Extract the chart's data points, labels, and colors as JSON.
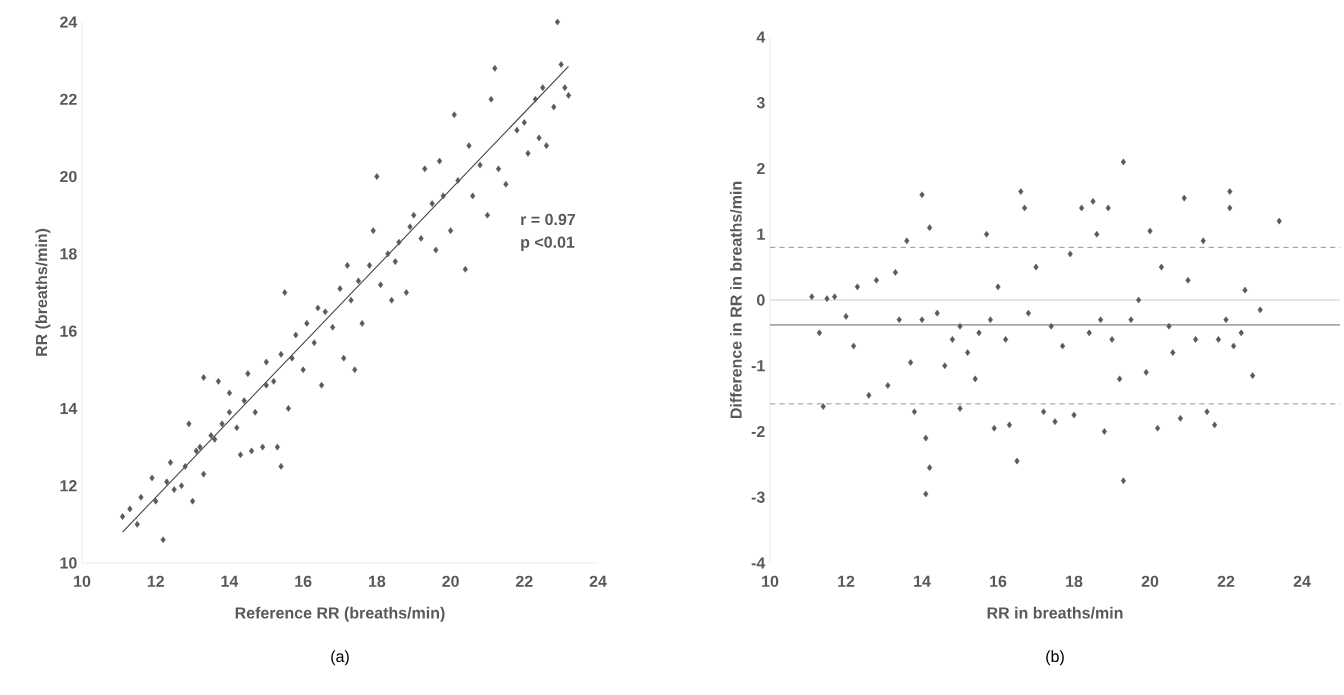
{
  "chart_data": [
    {
      "type": "scatter",
      "title": "(a)",
      "xlabel": "Reference RR (breaths/min)",
      "ylabel": "RR (breaths/min)",
      "xlim": [
        10,
        24
      ],
      "ylim": [
        10,
        24
      ],
      "xticks": [
        10,
        12,
        14,
        16,
        18,
        20,
        22,
        24
      ],
      "yticks": [
        10,
        12,
        14,
        16,
        18,
        20,
        22,
        24
      ],
      "annotations": [
        "r = 0.97",
        "p <0.01"
      ],
      "series": [
        {
          "marker": "diamond",
          "color": "#595959",
          "x": [
            11.1,
            11.3,
            11.5,
            11.6,
            11.9,
            12.0,
            12.2,
            12.3,
            12.4,
            12.5,
            12.7,
            12.8,
            12.9,
            13.0,
            13.1,
            13.2,
            13.3,
            13.3,
            13.5,
            13.6,
            13.7,
            13.8,
            14.0,
            14.0,
            14.2,
            14.3,
            14.4,
            14.5,
            14.6,
            14.7,
            14.9,
            15.0,
            15.0,
            15.2,
            15.3,
            15.4,
            15.4,
            15.5,
            15.6,
            15.7,
            15.8,
            16.0,
            16.1,
            16.3,
            16.4,
            16.5,
            16.6,
            16.8,
            17.0,
            17.1,
            17.2,
            17.3,
            17.4,
            17.5,
            17.6,
            17.8,
            17.9,
            18.0,
            18.1,
            18.3,
            18.4,
            18.5,
            18.6,
            18.8,
            18.9,
            19.0,
            19.2,
            19.3,
            19.5,
            19.6,
            19.7,
            19.8,
            20.0,
            20.1,
            20.2,
            20.4,
            20.5,
            20.6,
            20.8,
            21.0,
            21.1,
            21.2,
            21.3,
            21.5,
            21.8,
            22.0,
            22.1,
            22.3,
            22.4,
            22.5,
            22.6,
            22.8,
            22.9,
            23.0,
            23.1,
            23.2
          ],
          "values": [
            11.2,
            11.4,
            11.0,
            11.7,
            12.2,
            11.6,
            10.6,
            12.1,
            12.6,
            11.9,
            12.0,
            12.5,
            13.6,
            11.6,
            12.9,
            13.0,
            14.8,
            12.3,
            13.3,
            13.2,
            14.7,
            13.6,
            13.9,
            14.4,
            13.5,
            12.8,
            14.2,
            14.9,
            12.9,
            13.9,
            13.0,
            14.6,
            15.2,
            14.7,
            13.0,
            12.5,
            15.4,
            17.0,
            14.0,
            15.3,
            15.9,
            15.0,
            16.2,
            15.7,
            16.6,
            14.6,
            16.5,
            16.1,
            17.1,
            15.3,
            17.7,
            16.8,
            15.0,
            17.3,
            16.2,
            17.7,
            18.6,
            20.0,
            17.2,
            18.0,
            16.8,
            17.8,
            18.3,
            17.0,
            18.7,
            19.0,
            18.4,
            20.2,
            19.3,
            18.1,
            20.4,
            19.5,
            18.6,
            21.6,
            19.9,
            17.6,
            20.8,
            19.5,
            20.3,
            19.0,
            22.0,
            22.8,
            20.2,
            19.8,
            21.2,
            21.4,
            20.6,
            22.0,
            21.0,
            22.3,
            20.8,
            21.8,
            24.0,
            22.9,
            22.3,
            22.1
          ]
        },
        {
          "type": "line",
          "color": "#404040",
          "x": [
            11.1,
            23.2
          ],
          "values": [
            10.8,
            22.85
          ]
        }
      ]
    },
    {
      "type": "scatter",
      "title": "(b)",
      "xlabel": "RR in breaths/min",
      "ylabel": "Difference in RR in breaths/min",
      "xlim": [
        10,
        25
      ],
      "ylim": [
        -4,
        4
      ],
      "xticks": [
        10,
        12,
        14,
        16,
        18,
        20,
        22,
        24
      ],
      "yticks": [
        -4,
        -3,
        -2,
        -1,
        0,
        1,
        2,
        3,
        4
      ],
      "marker": "diamond",
      "ref_lines": [
        {
          "axis": "y",
          "value": 0,
          "color": "#bfbfbf",
          "line_style": "solid"
        },
        {
          "axis": "y",
          "value": -0.38,
          "color": "#a6a6a6",
          "line_style": "solid"
        },
        {
          "axis": "y",
          "value": 0.8,
          "color": "#7f7f7f",
          "line_style": "dashed"
        },
        {
          "axis": "y",
          "value": -1.58,
          "color": "#7f7f7f",
          "line_style": "dashed"
        }
      ],
      "series": [
        {
          "color": "#595959",
          "x": [
            11.1,
            11.3,
            11.4,
            11.5,
            11.7,
            12.0,
            12.2,
            12.3,
            12.6,
            12.8,
            13.1,
            13.3,
            13.4,
            13.6,
            13.7,
            13.8,
            14.0,
            14.0,
            14.1,
            14.2,
            14.1,
            14.2,
            14.4,
            14.6,
            14.8,
            15.0,
            15.0,
            15.2,
            15.4,
            15.5,
            15.7,
            15.8,
            15.9,
            16.0,
            16.2,
            16.3,
            16.5,
            16.6,
            16.7,
            16.8,
            17.0,
            17.2,
            17.4,
            17.5,
            17.7,
            17.9,
            18.0,
            18.2,
            18.4,
            18.5,
            18.6,
            18.7,
            18.8,
            18.9,
            19.0,
            19.2,
            19.3,
            19.3,
            19.5,
            19.7,
            19.9,
            20.0,
            20.2,
            20.3,
            20.5,
            20.6,
            20.8,
            20.9,
            21.0,
            21.2,
            21.4,
            21.5,
            21.7,
            21.8,
            22.0,
            22.1,
            22.1,
            22.2,
            22.4,
            22.5,
            22.7,
            22.9,
            23.4
          ],
          "values": [
            0.05,
            -0.5,
            -1.62,
            0.02,
            0.05,
            -0.25,
            -0.7,
            0.2,
            -1.45,
            0.3,
            -1.3,
            0.42,
            -0.3,
            0.9,
            -0.95,
            -1.7,
            1.6,
            -0.3,
            -2.95,
            -2.55,
            -2.1,
            1.1,
            -0.2,
            -1.0,
            -0.6,
            -0.4,
            -1.65,
            -0.8,
            -1.2,
            -0.5,
            1.0,
            -0.3,
            -1.95,
            0.2,
            -0.6,
            -1.9,
            -2.45,
            1.65,
            1.4,
            -0.2,
            0.5,
            -1.7,
            -0.4,
            -1.85,
            -0.7,
            0.7,
            -1.75,
            1.4,
            -0.5,
            1.5,
            1.0,
            -0.3,
            -2.0,
            1.4,
            -0.6,
            -1.2,
            -2.75,
            2.1,
            -0.3,
            0.0,
            -1.1,
            1.05,
            -1.95,
            0.5,
            -0.4,
            -0.8,
            -1.8,
            1.55,
            0.3,
            -0.6,
            0.9,
            -1.7,
            -1.9,
            -0.6,
            -0.3,
            1.4,
            1.65,
            -0.7,
            -0.5,
            0.15,
            -1.15,
            -0.15,
            1.2
          ]
        }
      ]
    }
  ]
}
